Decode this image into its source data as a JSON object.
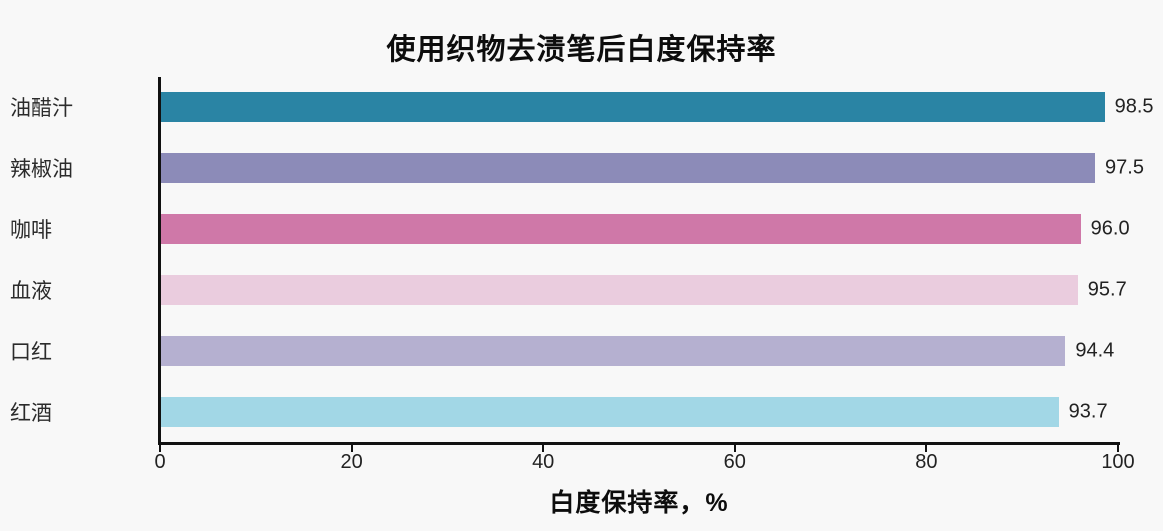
{
  "title": "使用织物去渍笔后白度保持率",
  "chart_data": {
    "type": "bar",
    "orientation": "horizontal",
    "title": "使用织物去渍笔后白度保持率",
    "categories": [
      "油醋汁",
      "辣椒油",
      "咖啡",
      "血液",
      "口红",
      "红酒"
    ],
    "values": [
      98.5,
      97.5,
      96,
      95.7,
      94.4,
      93.7
    ],
    "value_labels": [
      "98.5",
      "97.5",
      "96.0",
      "95.7",
      "94.4",
      "93.7"
    ],
    "bar_colors": [
      "#2A84A4",
      "#8C8BB8",
      "#CF78A8",
      "#EACCDE",
      "#B5B0D0",
      "#A2D7E6"
    ],
    "xlabel": "白度保持率，%",
    "xlim": [
      0,
      100
    ],
    "xticks": [
      0,
      20,
      40,
      60,
      80,
      100
    ],
    "grid": false,
    "legend": "none",
    "background_color": "#F8F8F8",
    "axis_color": "#111111",
    "text_color": "#2B2B2B"
  }
}
